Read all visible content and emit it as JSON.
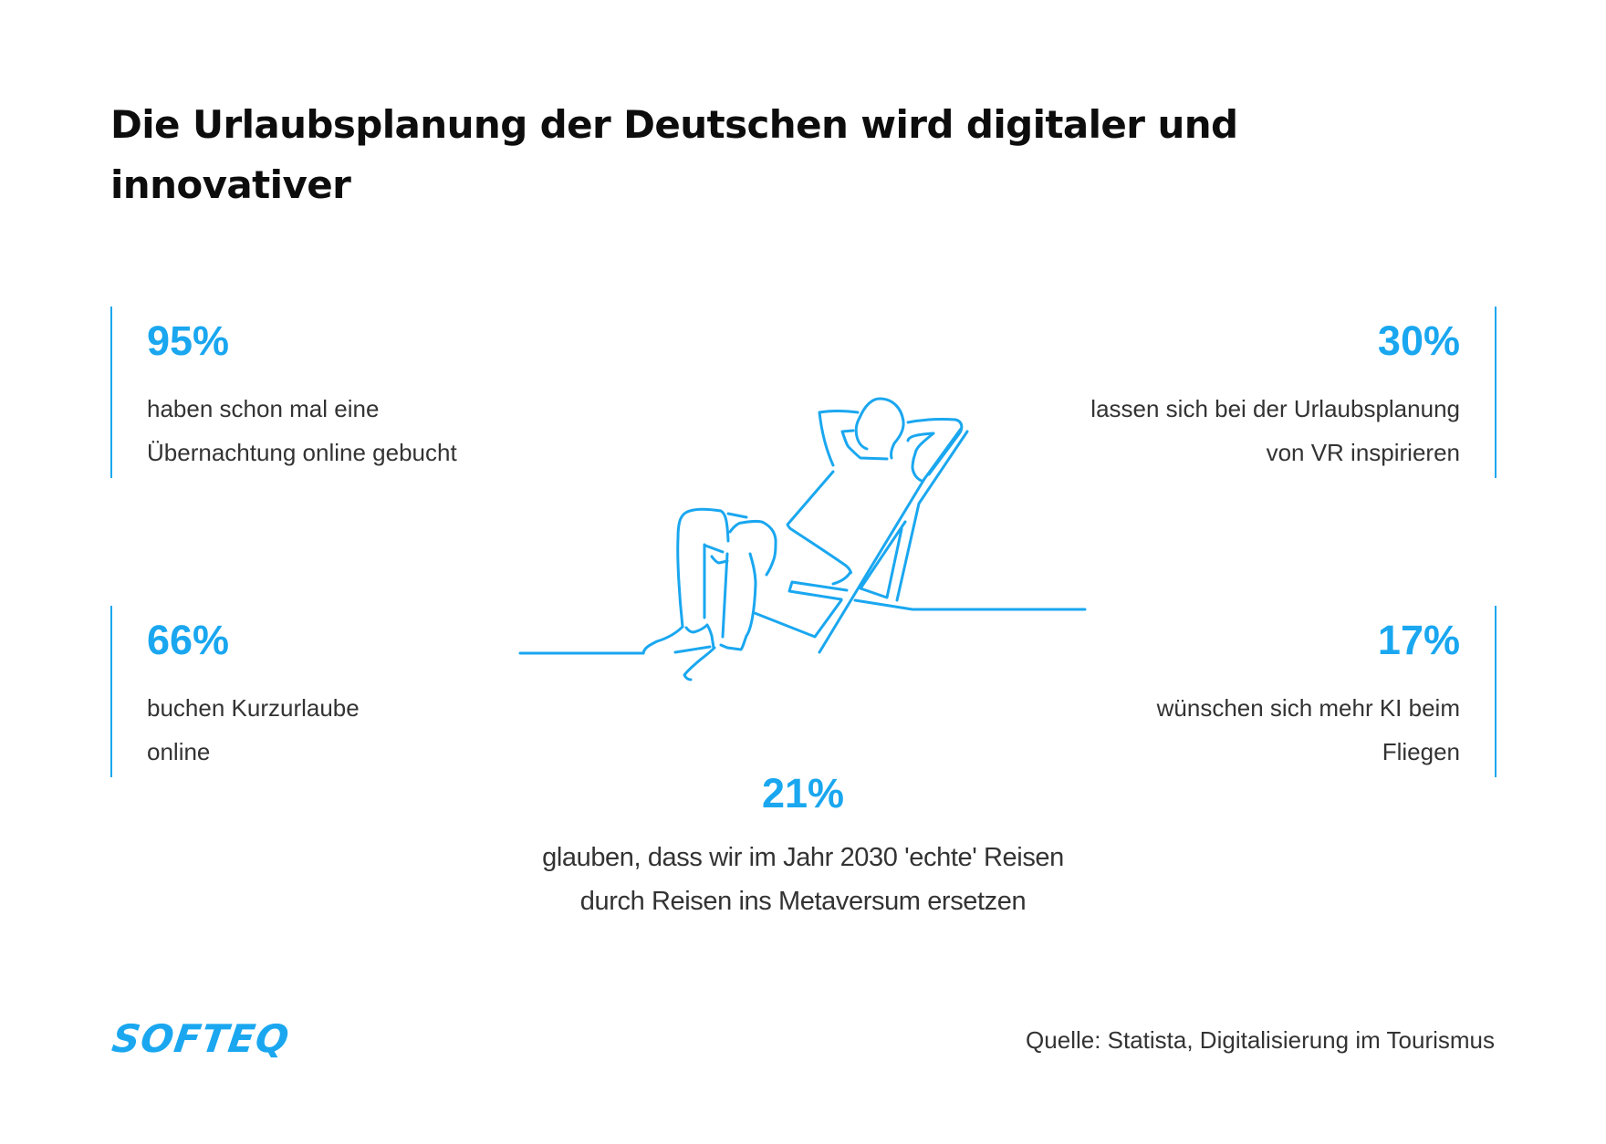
{
  "title": "Die Urlaubsplanung der Deutschen wird digitaler und innovativer",
  "accent_color": "#1aa7f0",
  "stats": [
    {
      "value": "95%",
      "lines": [
        "haben schon mal eine",
        "Übernachtung online gebucht"
      ],
      "position": "top-left"
    },
    {
      "value": "30%",
      "lines": [
        "lassen sich bei der Urlaubsplanung",
        "von VR inspirieren"
      ],
      "position": "top-right"
    },
    {
      "value": "66%",
      "lines": [
        "buchen Kurzurlaube",
        "online"
      ],
      "position": "bottom-left"
    },
    {
      "value": "17%",
      "lines": [
        "wünschen sich mehr KI beim",
        "Fliegen"
      ],
      "position": "bottom-right"
    },
    {
      "value": "21%",
      "lines": [
        "glauben, dass wir im Jahr 2030 'echte' Reisen",
        "durch Reisen ins Metaversum ersetzen"
      ],
      "position": "center"
    }
  ],
  "illustration": "person-relaxing-in-deck-chair",
  "logo": "SOFTEQ",
  "source": "Quelle: Statista, Digitalisierung im Tourismus"
}
